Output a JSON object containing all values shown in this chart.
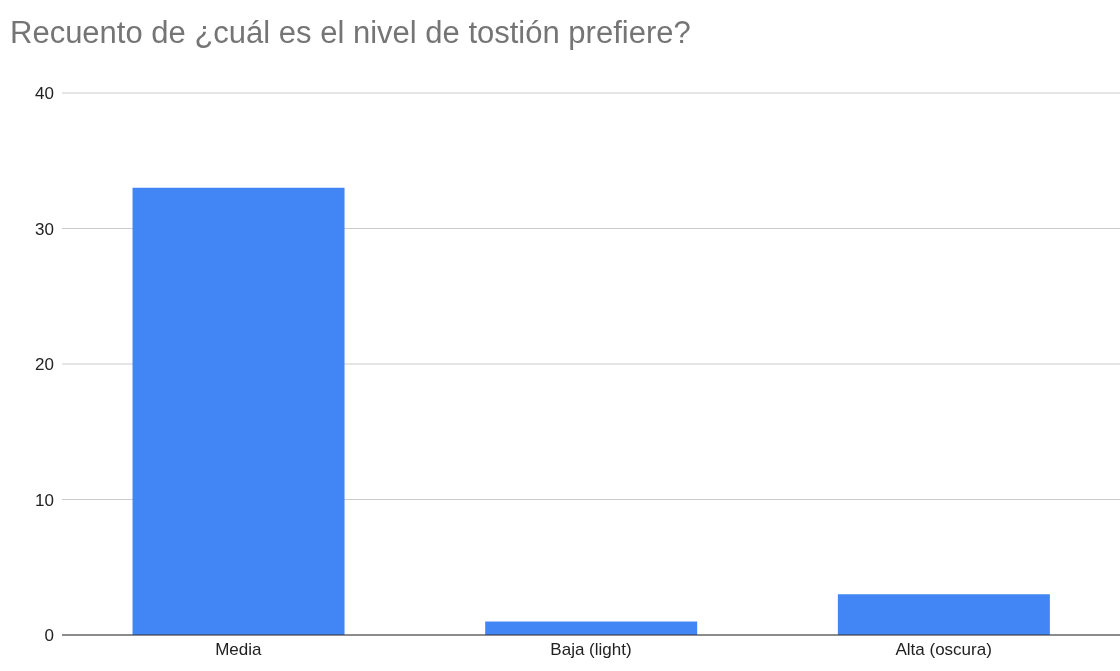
{
  "chart_data": {
    "type": "bar",
    "title": "Recuento de ¿cuál es el nivel de tostión prefiere?",
    "categories": [
      "Media",
      "Baja (light)",
      "Alta (oscura)"
    ],
    "values": [
      33,
      1,
      3
    ],
    "color": "#4285f4",
    "ylim": [
      0,
      40
    ],
    "yticks": [
      0,
      10,
      20,
      30,
      40
    ],
    "grid": "y"
  }
}
